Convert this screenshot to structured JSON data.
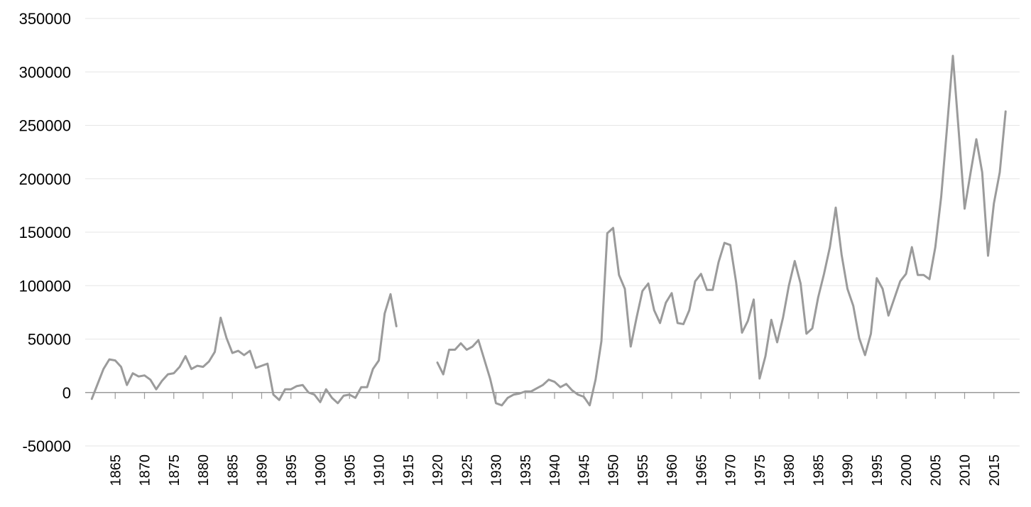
{
  "chart_data": {
    "type": "line",
    "title": "",
    "xlabel": "",
    "ylabel": "",
    "xlim": [
      1860,
      2019
    ],
    "ylim": [
      -50000,
      350000
    ],
    "grid": true,
    "legend": "none",
    "yticks": [
      -50000,
      0,
      50000,
      100000,
      150000,
      200000,
      250000,
      300000,
      350000
    ],
    "ytick_labels": [
      "-50000",
      "0",
      "50000",
      "100000",
      "150000",
      "200000",
      "250000",
      "300000",
      "350000"
    ],
    "xticks": [
      1865,
      1870,
      1875,
      1880,
      1885,
      1890,
      1895,
      1900,
      1905,
      1910,
      1915,
      1920,
      1925,
      1930,
      1935,
      1940,
      1945,
      1950,
      1955,
      1960,
      1965,
      1970,
      1975,
      1980,
      1985,
      1990,
      1995,
      2000,
      2005,
      2010,
      2015
    ],
    "xtick_labels": [
      "1865",
      "1870",
      "1875",
      "1880",
      "1885",
      "1890",
      "1895",
      "1900",
      "1905",
      "1910",
      "1915",
      "1920",
      "1925",
      "1930",
      "1935",
      "1940",
      "1945",
      "1950",
      "1955",
      "1960",
      "1965",
      "1970",
      "1975",
      "1980",
      "1985",
      "1990",
      "1995",
      "2000",
      "2005",
      "2010",
      "2015"
    ],
    "colors": {
      "line": "#9b9b9b",
      "grid": "#e6e6e6",
      "axis": "#9a9a9a"
    },
    "series": [
      {
        "x": [
          1861,
          1862,
          1863,
          1864,
          1865,
          1866,
          1867,
          1868,
          1869,
          1870,
          1871,
          1872,
          1873,
          1874,
          1875,
          1876,
          1877,
          1878,
          1879,
          1880,
          1881,
          1882,
          1883,
          1884,
          1885,
          1886,
          1887,
          1888,
          1889,
          1890,
          1891,
          1892,
          1893,
          1894,
          1895,
          1896,
          1897,
          1898,
          1899,
          1900,
          1901,
          1902,
          1903,
          1904,
          1905,
          1906,
          1907,
          1908,
          1909,
          1910,
          1911,
          1912,
          1913,
          1914,
          1915,
          1916,
          1917,
          1918,
          1919,
          1920,
          1921,
          1922,
          1923,
          1924,
          1925,
          1926,
          1927,
          1928,
          1929,
          1930,
          1931,
          1932,
          1933,
          1934,
          1935,
          1936,
          1937,
          1938,
          1939,
          1940,
          1941,
          1942,
          1943,
          1944,
          1945,
          1946,
          1947,
          1948,
          1949,
          1950,
          1951,
          1952,
          1953,
          1954,
          1955,
          1956,
          1957,
          1958,
          1959,
          1960,
          1961,
          1962,
          1963,
          1964,
          1965,
          1966,
          1967,
          1968,
          1969,
          1970,
          1971,
          1972,
          1973,
          1974,
          1975,
          1976,
          1977,
          1978,
          1979,
          1980,
          1981,
          1982,
          1983,
          1984,
          1985,
          1986,
          1987,
          1988,
          1989,
          1990,
          1991,
          1992,
          1993,
          1994,
          1995,
          1996,
          1997,
          1998,
          1999,
          2000,
          2001,
          2002,
          2003,
          2004,
          2005,
          2006,
          2007,
          2008,
          2009,
          2010,
          2011,
          2012,
          2013,
          2014,
          2015,
          2016,
          2017
        ],
        "y": [
          -6000,
          8000,
          22000,
          31000,
          30000,
          24000,
          7000,
          18000,
          15000,
          16000,
          12000,
          3000,
          11000,
          17000,
          18000,
          24000,
          34000,
          22000,
          25000,
          24000,
          29000,
          38000,
          70000,
          51000,
          37000,
          39000,
          35000,
          39000,
          23000,
          25000,
          27000,
          -2000,
          -7000,
          3000,
          3000,
          6000,
          7000,
          0,
          -2000,
          -9000,
          3000,
          -5000,
          -10000,
          -3000,
          -2000,
          -5000,
          5000,
          5000,
          22000,
          30000,
          74000,
          92000,
          62000,
          null,
          null,
          null,
          null,
          null,
          null,
          28000,
          17000,
          40000,
          40000,
          46000,
          40000,
          43000,
          49000,
          31000,
          13000,
          -10000,
          -12000,
          -5000,
          -2000,
          -1000,
          1000,
          1000,
          4000,
          7000,
          12000,
          10000,
          5000,
          8000,
          2000,
          -2000,
          -4000,
          -12000,
          12000,
          48000,
          149000,
          154000,
          110000,
          97000,
          43000,
          70000,
          95000,
          102000,
          77000,
          65000,
          84000,
          93000,
          65000,
          64000,
          77000,
          104000,
          111000,
          96000,
          96000,
          122000,
          140000,
          138000,
          103000,
          56000,
          67000,
          87000,
          13000,
          34000,
          68000,
          47000,
          70000,
          100000,
          123000,
          102000,
          55000,
          60000,
          89000,
          111000,
          136000,
          173000,
          129000,
          97000,
          81000,
          51000,
          35000,
          55000,
          107000,
          97000,
          72000,
          88000,
          104000,
          111000,
          136000,
          110000,
          110000,
          106000,
          136000,
          183000,
          248000,
          315000,
          244000,
          172000,
          205000,
          237000,
          206000,
          128000,
          177000,
          206000,
          263000
        ]
      }
    ]
  }
}
